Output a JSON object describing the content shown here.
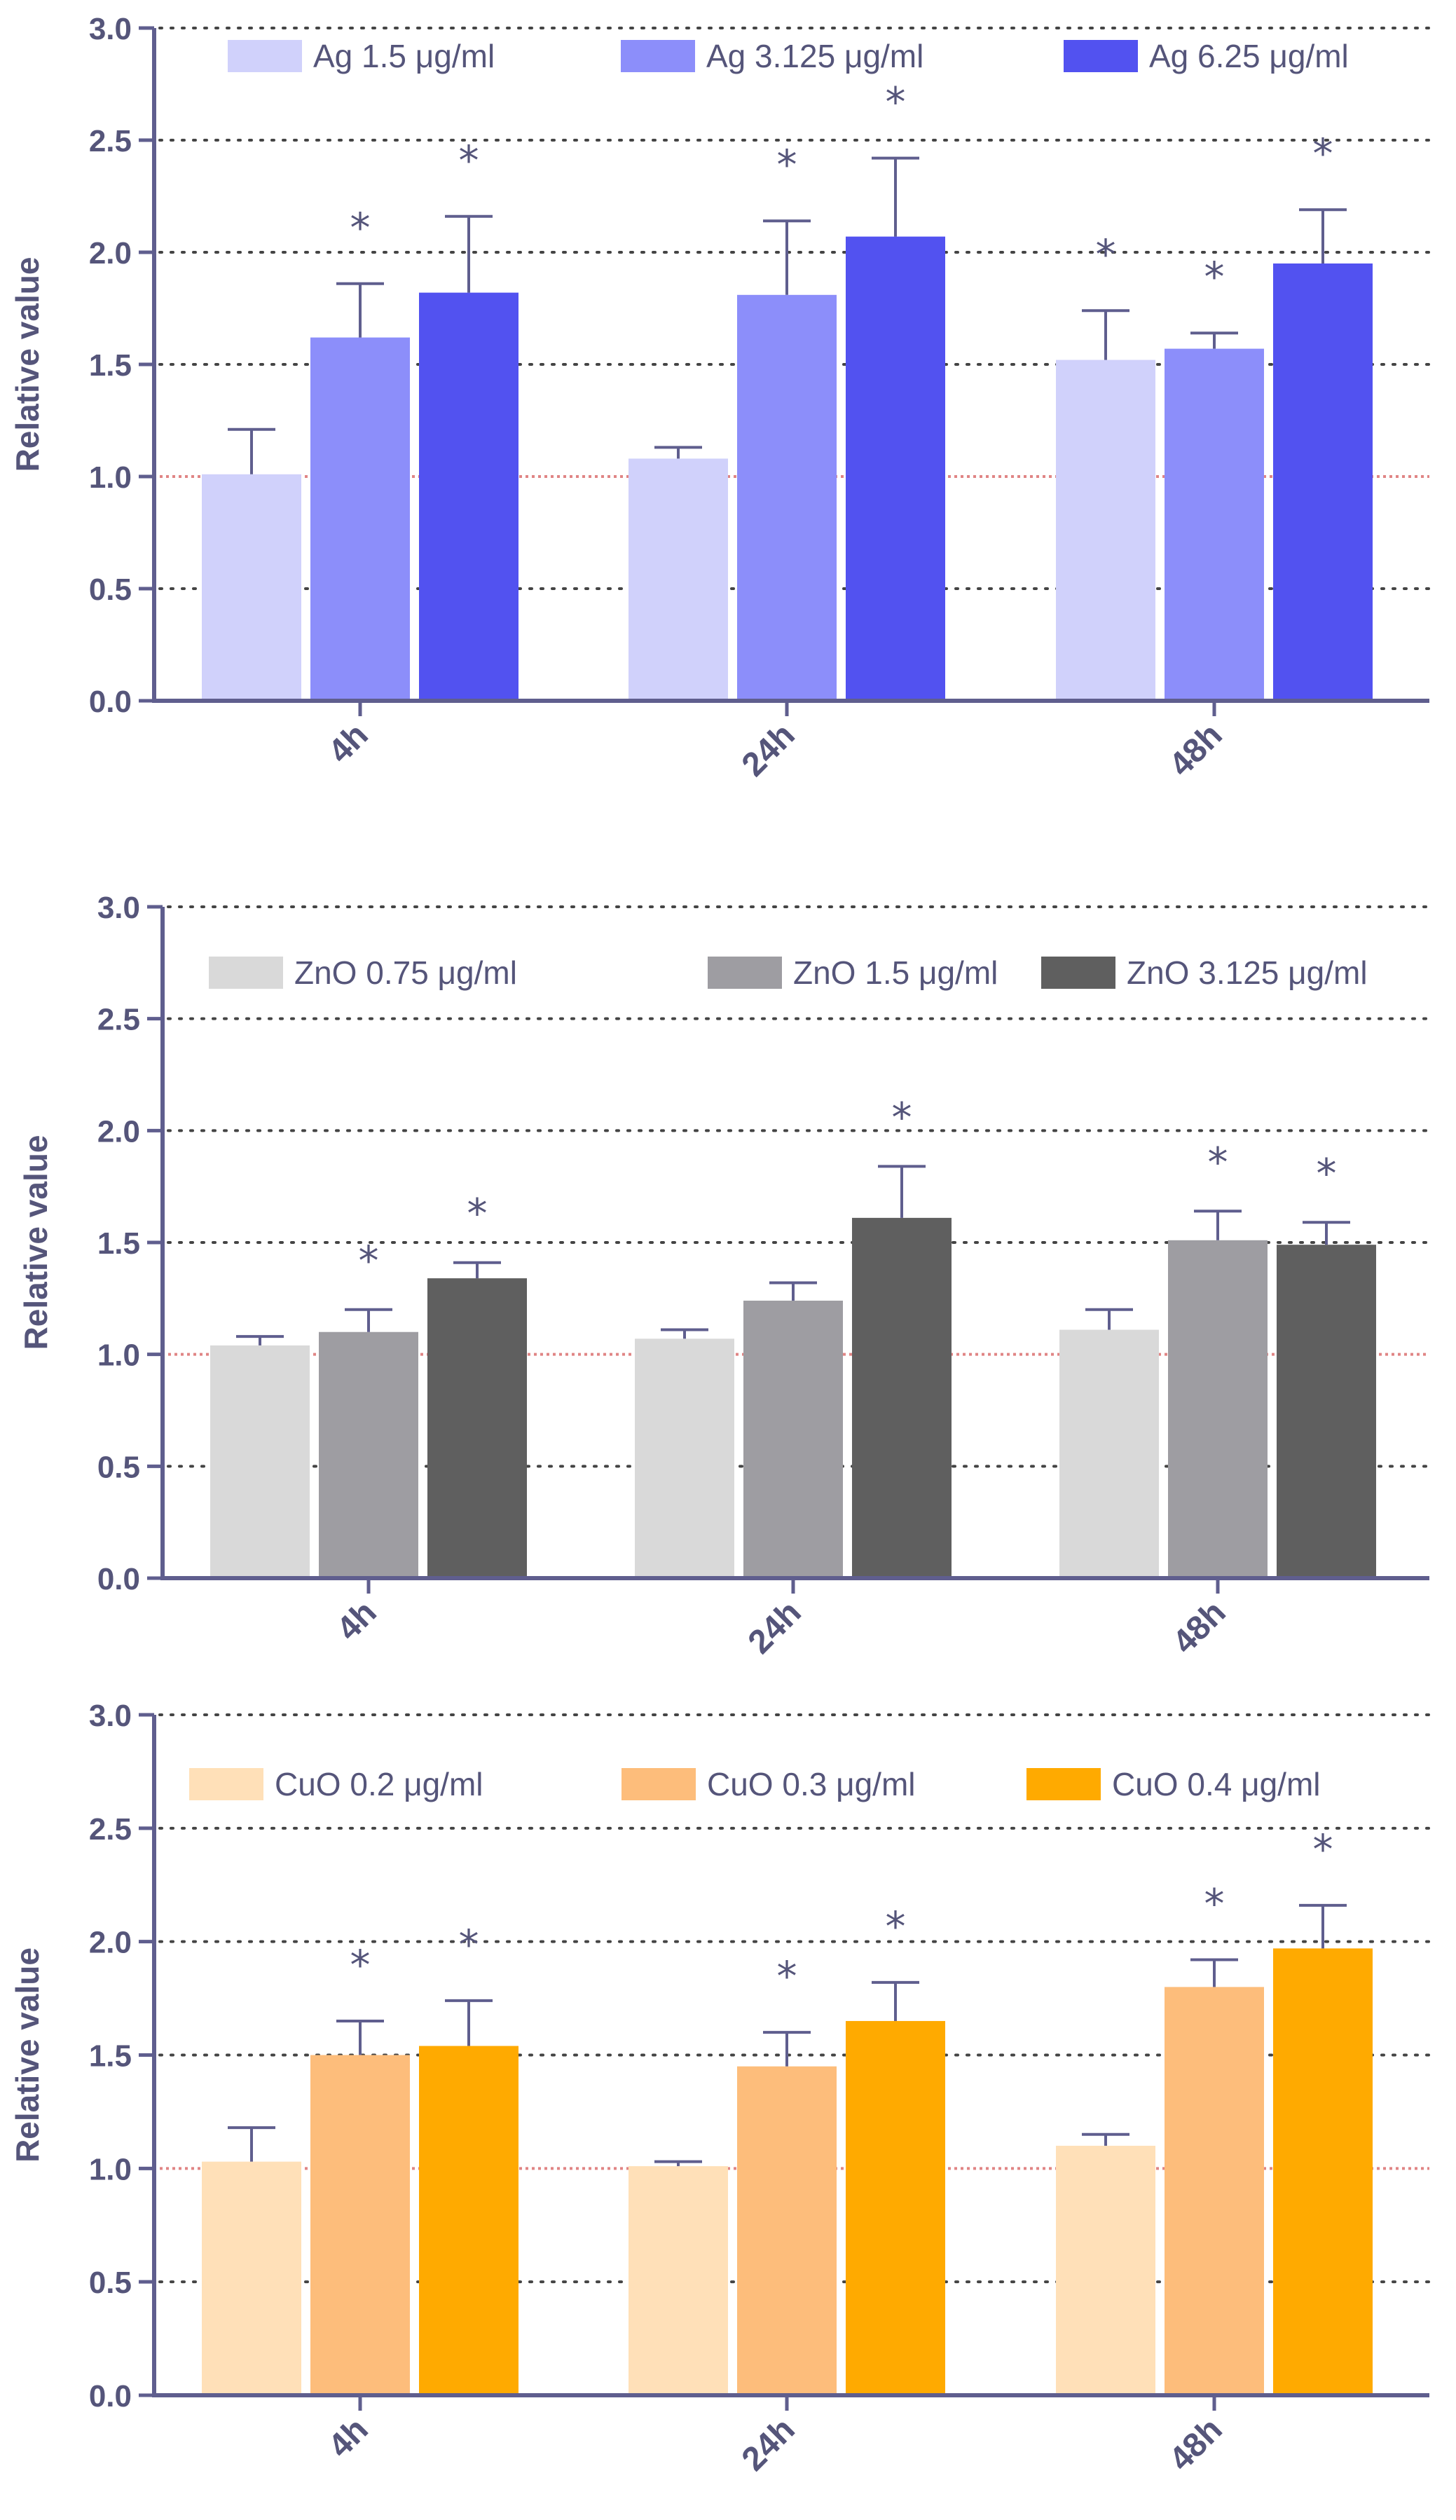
{
  "chart_data": [
    {
      "type": "bar",
      "ylabel": "Relative value",
      "ylim": [
        0,
        3
      ],
      "yticks": [
        "0.0",
        "0.5",
        "1.0",
        "1.5",
        "2.0",
        "2.5",
        "3.0"
      ],
      "categories": [
        "4h",
        "24h",
        "48h"
      ],
      "reference_line": 1.0,
      "grid": "dotted horizontal",
      "legend_position": "top",
      "series": [
        {
          "name": "Ag 1.5 μg/ml",
          "color": "#d0d1fb",
          "values": [
            1.01,
            1.08,
            1.52
          ],
          "errors": [
            0.2,
            0.05,
            0.22
          ],
          "significant": [
            false,
            false,
            true
          ]
        },
        {
          "name": "Ag 3.125 μg/ml",
          "color": "#8c8efa",
          "values": [
            1.62,
            1.81,
            1.57
          ],
          "errors": [
            0.24,
            0.33,
            0.07
          ],
          "significant": [
            true,
            true,
            true
          ]
        },
        {
          "name": "Ag 6.25 μg/ml",
          "color": "#5252f0",
          "values": [
            1.82,
            2.07,
            1.95
          ],
          "errors": [
            0.34,
            0.35,
            0.24
          ],
          "significant": [
            true,
            true,
            true
          ]
        }
      ],
      "significance_marker": "*"
    },
    {
      "type": "bar",
      "ylabel": "Relative value",
      "ylim": [
        0,
        3
      ],
      "yticks": [
        "0.0",
        "0.5",
        "1.0",
        "1.5",
        "2.0",
        "2.5",
        "3.0"
      ],
      "categories": [
        "4h",
        "24h",
        "48h"
      ],
      "reference_line": 1.0,
      "grid": "dotted horizontal",
      "legend_position": "top",
      "series": [
        {
          "name": "ZnO 0.75 μg/ml",
          "color": "#d9d9d9",
          "values": [
            1.04,
            1.07,
            1.11
          ],
          "errors": [
            0.04,
            0.04,
            0.09
          ],
          "significant": [
            false,
            false,
            false
          ]
        },
        {
          "name": "ZnO 1.5 μg/ml",
          "color": "#9e9da2",
          "values": [
            1.1,
            1.24,
            1.51
          ],
          "errors": [
            0.1,
            0.08,
            0.13
          ],
          "significant": [
            true,
            false,
            true
          ]
        },
        {
          "name": "ZnO 3.125 μg/ml",
          "color": "#5f5f5f",
          "values": [
            1.34,
            1.61,
            1.49
          ],
          "errors": [
            0.07,
            0.23,
            0.1
          ],
          "significant": [
            true,
            true,
            true
          ]
        }
      ],
      "significance_marker": "*"
    },
    {
      "type": "bar",
      "ylabel": "Relative value",
      "ylim": [
        0,
        3
      ],
      "yticks": [
        "0.0",
        "0.5",
        "1.0",
        "1.5",
        "2.0",
        "2.5",
        "3.0"
      ],
      "categories": [
        "4h",
        "24h",
        "48h"
      ],
      "reference_line": 1.0,
      "grid": "dotted horizontal",
      "legend_position": "top",
      "series": [
        {
          "name": "CuO 0.2 μg/ml",
          "color": "#ffe0b8",
          "values": [
            1.03,
            1.01,
            1.1
          ],
          "errors": [
            0.15,
            0.02,
            0.05
          ],
          "significant": [
            false,
            false,
            false
          ]
        },
        {
          "name": "CuO 0.3 μg/ml",
          "color": "#fdbd7b",
          "values": [
            1.5,
            1.45,
            1.8
          ],
          "errors": [
            0.15,
            0.15,
            0.12
          ],
          "significant": [
            true,
            true,
            true
          ]
        },
        {
          "name": "CuO 0.4 μg/ml",
          "color": "#ffaa00",
          "values": [
            1.54,
            1.65,
            1.97
          ],
          "errors": [
            0.2,
            0.17,
            0.19
          ],
          "significant": [
            true,
            true,
            true
          ]
        }
      ],
      "significance_marker": "*"
    }
  ]
}
